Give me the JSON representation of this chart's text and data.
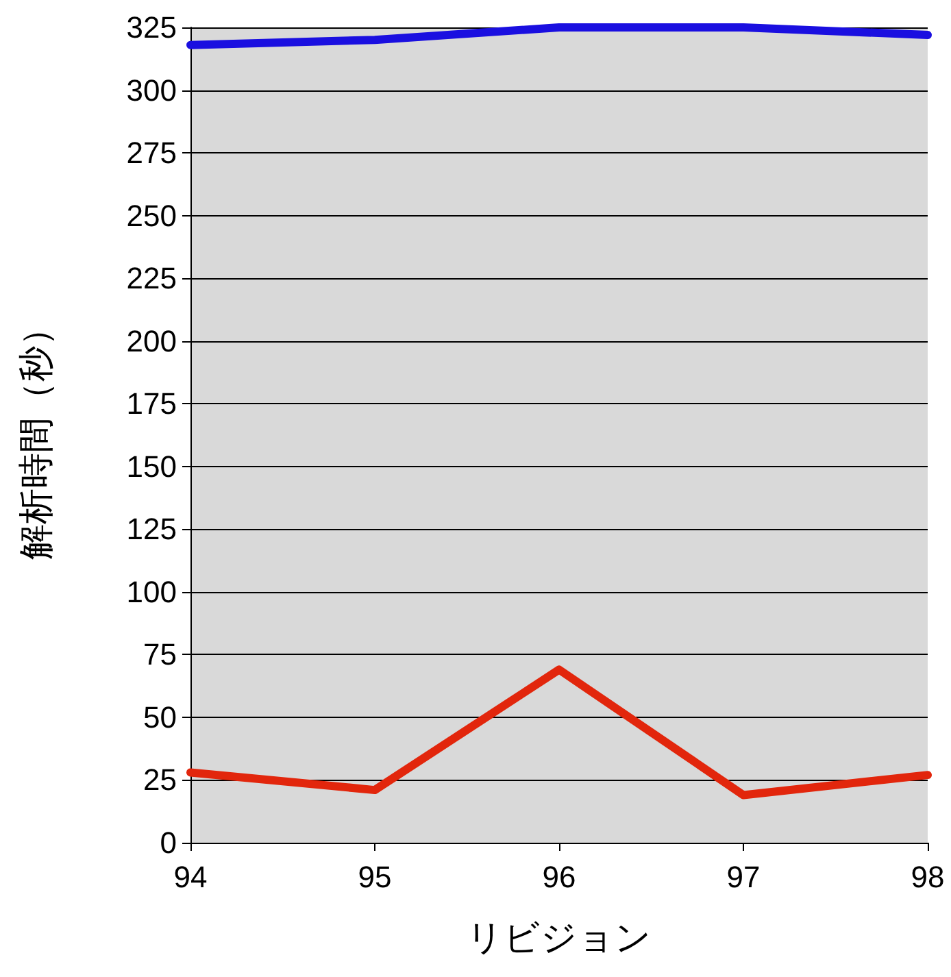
{
  "chart_data": {
    "type": "line",
    "xlabel": "リビジョン",
    "ylabel": "解析時間（秒）",
    "x": [
      94,
      95,
      96,
      97,
      98
    ],
    "series": [
      {
        "color": "#1a0fe0",
        "values": [
          318,
          320,
          325,
          325,
          322
        ]
      },
      {
        "color": "#e2260c",
        "values": [
          28,
          21,
          69,
          19,
          27
        ]
      }
    ],
    "xlim": [
      94,
      98
    ],
    "xticks": [
      94,
      95,
      96,
      97,
      98
    ],
    "ylim": [
      0,
      325
    ],
    "yticks": [
      0,
      25,
      50,
      75,
      100,
      125,
      150,
      175,
      200,
      225,
      250,
      275,
      300,
      325
    ],
    "grid": "y",
    "marker": "none",
    "line_style": "solid"
  }
}
